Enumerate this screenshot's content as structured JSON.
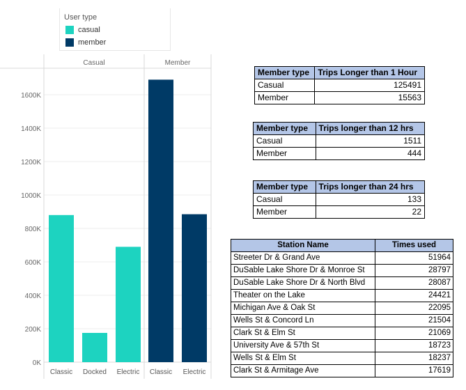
{
  "legend": {
    "title": "User type",
    "items": [
      {
        "label": "casual",
        "color": "#1dd3c0"
      },
      {
        "label": "member",
        "color": "#003a66"
      }
    ]
  },
  "chart_data": {
    "type": "bar",
    "panels": [
      "Casual",
      "Member"
    ],
    "categories": [
      {
        "panel": "Casual",
        "label": "Classic",
        "value": 880000,
        "series": "casual"
      },
      {
        "panel": "Casual",
        "label": "Docked",
        "value": 175000,
        "series": "casual"
      },
      {
        "panel": "Casual",
        "label": "Electric",
        "value": 690000,
        "series": "casual"
      },
      {
        "panel": "Member",
        "label": "Classic",
        "value": 1690000,
        "series": "member"
      },
      {
        "panel": "Member",
        "label": "Electric",
        "value": 885000,
        "series": "member"
      }
    ],
    "colors": {
      "casual": "#1dd3c0",
      "member": "#003a66"
    },
    "ylim": [
      0,
      1750000
    ],
    "yticks": [
      0,
      200000,
      400000,
      600000,
      800000,
      1000000,
      1200000,
      1400000,
      1600000
    ],
    "ytick_labels": [
      "0K",
      "200K",
      "400K",
      "600K",
      "800K",
      "1000K",
      "1200K",
      "1400K",
      "1600K"
    ],
    "grid": true
  },
  "tables": {
    "hour1": {
      "headers": [
        "Member type",
        "Trips Longer than 1 Hour"
      ],
      "rows": [
        [
          "Casual",
          "125491"
        ],
        [
          "Member",
          "15563"
        ]
      ]
    },
    "hour12": {
      "headers": [
        "Member type",
        "Trips longer than 12 hrs"
      ],
      "rows": [
        [
          "Casual",
          "1511"
        ],
        [
          "Member",
          "444"
        ]
      ]
    },
    "hour24": {
      "headers": [
        "Member type",
        "Trips longer than 24 hrs"
      ],
      "rows": [
        [
          "Casual",
          "133"
        ],
        [
          "Member",
          "22"
        ]
      ]
    },
    "stations": {
      "headers": [
        "Station Name",
        "Times used"
      ],
      "rows": [
        [
          "Streeter Dr & Grand Ave",
          "51964"
        ],
        [
          "DuSable Lake Shore Dr & Monroe St",
          "28797"
        ],
        [
          "DuSable Lake Shore Dr & North Blvd",
          "28087"
        ],
        [
          "Theater on the Lake",
          "24421"
        ],
        [
          "Michigan Ave & Oak St",
          "22095"
        ],
        [
          "Wells St & Concord Ln",
          "21504"
        ],
        [
          "Clark St & Elm St",
          "21069"
        ],
        [
          "University Ave & 57th St",
          "18723"
        ],
        [
          "Wells St & Elm St",
          "18237"
        ],
        [
          "Clark St & Armitage Ave",
          "17619"
        ]
      ]
    }
  }
}
